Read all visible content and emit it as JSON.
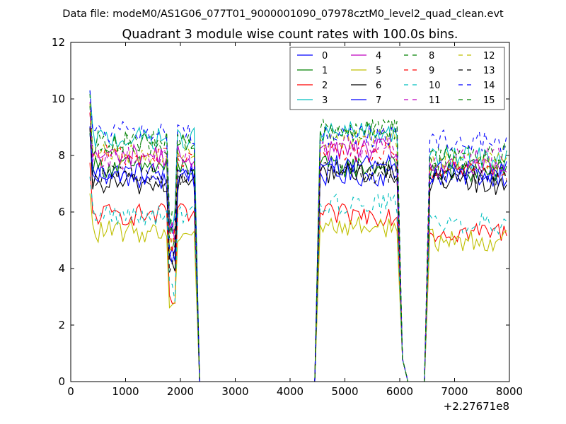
{
  "chart_data": {
    "type": "line",
    "suptitle": "Data file: modeM0/AS1G06_077T01_9000001090_07978cztM0_level2_quad_clean.evt",
    "title": "Quadrant 3 module wise count rates with 100.0s bins.",
    "xlabel": "",
    "ylabel": "",
    "x_offset_label": "+2.27671e8",
    "xlim": [
      0,
      8000
    ],
    "ylim": [
      0,
      12
    ],
    "xticks": [
      "0",
      "1000",
      "2000",
      "3000",
      "4000",
      "5000",
      "6000",
      "7000",
      "8000"
    ],
    "yticks": [
      "0",
      "2",
      "4",
      "6",
      "8",
      "10",
      "12"
    ],
    "grid": false,
    "legend_placement": "top-right",
    "segments": [
      {
        "x_start": 350,
        "x_end": 2250
      },
      {
        "x_start": 4550,
        "x_end": 5950
      },
      {
        "x_start": 6550,
        "x_end": 7950
      }
    ],
    "gap_points": [
      2350,
      4450,
      6050,
      6150,
      6450
    ],
    "series": [
      {
        "name": "0",
        "color": "#0000ff",
        "dash": "solid",
        "levels": [
          7.4,
          7.3,
          7.3
        ]
      },
      {
        "name": "1",
        "color": "#008000",
        "dash": "solid",
        "levels": [
          7.6,
          7.6,
          7.4
        ]
      },
      {
        "name": "2",
        "color": "#ff0000",
        "dash": "solid",
        "levels": [
          5.9,
          5.9,
          5.3
        ]
      },
      {
        "name": "3",
        "color": "#00bfbf",
        "dash": "solid",
        "levels": [
          8.6,
          8.8,
          7.9
        ]
      },
      {
        "name": "4",
        "color": "#bf00bf",
        "dash": "solid",
        "levels": [
          8.0,
          8.2,
          7.5
        ]
      },
      {
        "name": "5",
        "color": "#bfbf00",
        "dash": "solid",
        "levels": [
          5.3,
          5.5,
          5.0
        ]
      },
      {
        "name": "6",
        "color": "#000000",
        "dash": "solid",
        "levels": [
          7.0,
          7.4,
          7.0
        ]
      },
      {
        "name": "7",
        "color": "#0000ff",
        "dash": "solid",
        "levels": [
          7.2,
          7.7,
          7.4
        ]
      },
      {
        "name": "8",
        "color": "#008000",
        "dash": "dashed",
        "levels": [
          8.5,
          8.9,
          8.1
        ]
      },
      {
        "name": "9",
        "color": "#ff0000",
        "dash": "dashed",
        "levels": [
          8.0,
          8.1,
          7.5
        ]
      },
      {
        "name": "10",
        "color": "#00bfbf",
        "dash": "dashed",
        "levels": [
          5.9,
          6.3,
          5.6
        ]
      },
      {
        "name": "11",
        "color": "#bf00bf",
        "dash": "dashed",
        "levels": [
          7.9,
          8.3,
          7.9
        ]
      },
      {
        "name": "12",
        "color": "#bfbf00",
        "dash": "dashed",
        "levels": [
          8.0,
          8.6,
          7.8
        ]
      },
      {
        "name": "13",
        "color": "#000000",
        "dash": "dashed",
        "levels": [
          7.3,
          7.4,
          7.3
        ]
      },
      {
        "name": "14",
        "color": "#0000ff",
        "dash": "dashed",
        "levels": [
          8.8,
          8.7,
          8.5
        ]
      },
      {
        "name": "15",
        "color": "#008000",
        "dash": "dashed",
        "levels": [
          8.4,
          8.9,
          7.8
        ]
      }
    ]
  }
}
